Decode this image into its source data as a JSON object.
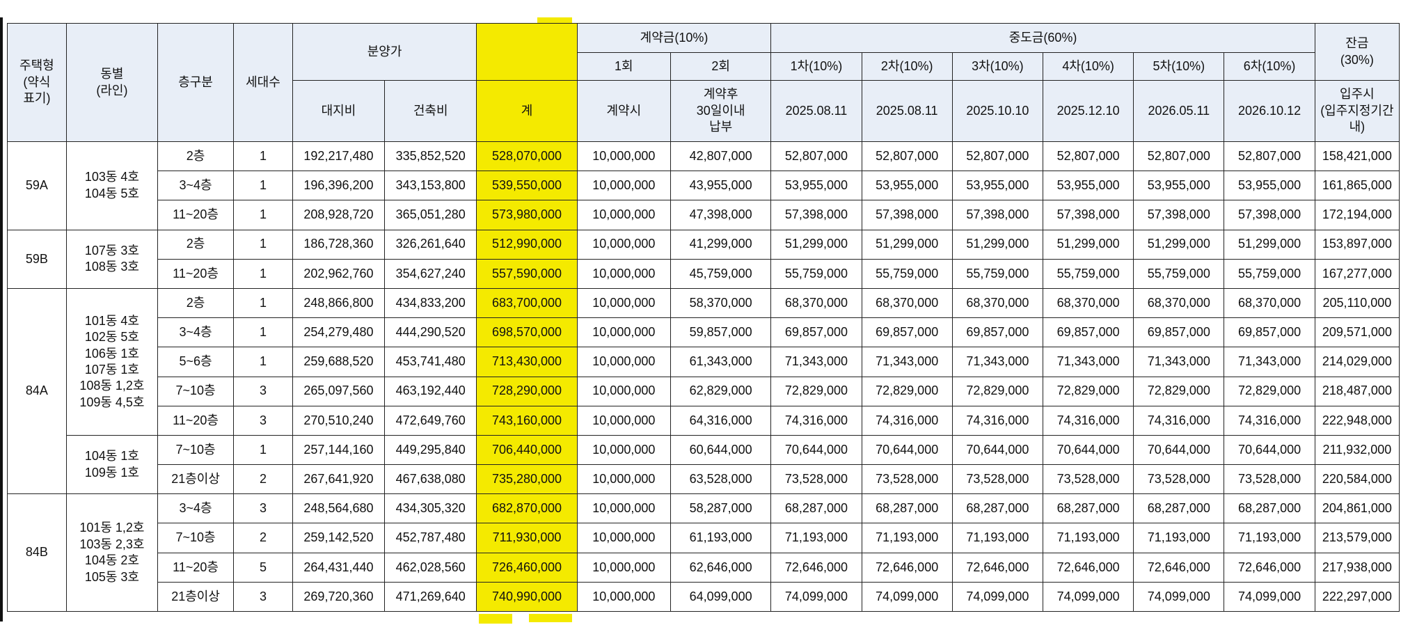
{
  "header": {
    "type": "주택형\n(약식\n표기)",
    "dong": "동별\n(라인)",
    "floor": "층구분",
    "units": "세대수",
    "price_group": "분양가",
    "land": "대지비",
    "building": "건축비",
    "total": "계",
    "deposit_group": "계약금(10%)",
    "deposit_1": "1회",
    "deposit_2": "2회",
    "deposit_1_when": "계약시",
    "deposit_2_when": "계약후\n30일이내\n납부",
    "middle_group": "중도금(60%)",
    "middle": [
      "1차(10%)",
      "2차(10%)",
      "3차(10%)",
      "4차(10%)",
      "5차(10%)",
      "6차(10%)"
    ],
    "middle_dates": [
      "2025.08.11",
      "2025.08.11",
      "2025.10.10",
      "2025.12.10",
      "2026.05.11",
      "2026.10.12"
    ],
    "balance": "잔금\n(30%)",
    "balance_when": "입주시\n(입주지정기간\n내)"
  },
  "types": [
    {
      "type": "59A",
      "groups": [
        {
          "dong": "103동 4호\n104동 5호",
          "rows": [
            {
              "floor": "2층",
              "units": "1",
              "land": "192,217,480",
              "building": "335,852,520",
              "total": "528,070,000",
              "d1": "10,000,000",
              "d2": "42,807,000",
              "mid": "52,807,000",
              "bal": "158,421,000"
            },
            {
              "floor": "3~4층",
              "units": "1",
              "land": "196,396,200",
              "building": "343,153,800",
              "total": "539,550,000",
              "d1": "10,000,000",
              "d2": "43,955,000",
              "mid": "53,955,000",
              "bal": "161,865,000"
            },
            {
              "floor": "11~20층",
              "units": "1",
              "land": "208,928,720",
              "building": "365,051,280",
              "total": "573,980,000",
              "d1": "10,000,000",
              "d2": "47,398,000",
              "mid": "57,398,000",
              "bal": "172,194,000"
            }
          ]
        }
      ]
    },
    {
      "type": "59B",
      "groups": [
        {
          "dong": "107동 3호\n108동 3호",
          "rows": [
            {
              "floor": "2층",
              "units": "1",
              "land": "186,728,360",
              "building": "326,261,640",
              "total": "512,990,000",
              "d1": "10,000,000",
              "d2": "41,299,000",
              "mid": "51,299,000",
              "bal": "153,897,000"
            },
            {
              "floor": "11~20층",
              "units": "1",
              "land": "202,962,760",
              "building": "354,627,240",
              "total": "557,590,000",
              "d1": "10,000,000",
              "d2": "45,759,000",
              "mid": "55,759,000",
              "bal": "167,277,000"
            }
          ]
        }
      ]
    },
    {
      "type": "84A",
      "groups": [
        {
          "dong": "101동 4호\n102동 5호\n106동 1호\n107동 1호\n108동 1,2호\n109동 4,5호",
          "rows": [
            {
              "floor": "2층",
              "units": "1",
              "land": "248,866,800",
              "building": "434,833,200",
              "total": "683,700,000",
              "d1": "10,000,000",
              "d2": "58,370,000",
              "mid": "68,370,000",
              "bal": "205,110,000"
            },
            {
              "floor": "3~4층",
              "units": "1",
              "land": "254,279,480",
              "building": "444,290,520",
              "total": "698,570,000",
              "d1": "10,000,000",
              "d2": "59,857,000",
              "mid": "69,857,000",
              "bal": "209,571,000"
            },
            {
              "floor": "5~6층",
              "units": "1",
              "land": "259,688,520",
              "building": "453,741,480",
              "total": "713,430,000",
              "d1": "10,000,000",
              "d2": "61,343,000",
              "mid": "71,343,000",
              "bal": "214,029,000"
            },
            {
              "floor": "7~10층",
              "units": "3",
              "land": "265,097,560",
              "building": "463,192,440",
              "total": "728,290,000",
              "d1": "10,000,000",
              "d2": "62,829,000",
              "mid": "72,829,000",
              "bal": "218,487,000"
            },
            {
              "floor": "11~20층",
              "units": "3",
              "land": "270,510,240",
              "building": "472,649,760",
              "total": "743,160,000",
              "d1": "10,000,000",
              "d2": "64,316,000",
              "mid": "74,316,000",
              "bal": "222,948,000"
            }
          ]
        },
        {
          "dong": "104동 1호\n109동 1호",
          "rows": [
            {
              "floor": "7~10층",
              "units": "1",
              "land": "257,144,160",
              "building": "449,295,840",
              "total": "706,440,000",
              "d1": "10,000,000",
              "d2": "60,644,000",
              "mid": "70,644,000",
              "bal": "211,932,000"
            },
            {
              "floor": "21층이상",
              "units": "2",
              "land": "267,641,920",
              "building": "467,638,080",
              "total": "735,280,000",
              "d1": "10,000,000",
              "d2": "63,528,000",
              "mid": "73,528,000",
              "bal": "220,584,000"
            }
          ]
        }
      ]
    },
    {
      "type": "84B",
      "groups": [
        {
          "dong": "101동 1,2호\n103동 2,3호\n104동 2호\n105동 3호",
          "rows": [
            {
              "floor": "3~4층",
              "units": "3",
              "land": "248,564,680",
              "building": "434,305,320",
              "total": "682,870,000",
              "d1": "10,000,000",
              "d2": "58,287,000",
              "mid": "68,287,000",
              "bal": "204,861,000"
            },
            {
              "floor": "7~10층",
              "units": "2",
              "land": "259,142,520",
              "building": "452,787,480",
              "total": "711,930,000",
              "d1": "10,000,000",
              "d2": "61,193,000",
              "mid": "71,193,000",
              "bal": "213,579,000"
            },
            {
              "floor": "11~20층",
              "units": "5",
              "land": "264,431,440",
              "building": "462,028,560",
              "total": "726,460,000",
              "d1": "10,000,000",
              "d2": "62,646,000",
              "mid": "72,646,000",
              "bal": "217,938,000"
            },
            {
              "floor": "21층이상",
              "units": "3",
              "land": "269,720,360",
              "building": "471,269,640",
              "total": "740,990,000",
              "d1": "10,000,000",
              "d2": "64,099,000",
              "mid": "74,099,000",
              "bal": "222,297,000"
            }
          ]
        }
      ]
    }
  ],
  "colors": {
    "header_bg": "#e8eef7",
    "highlight": "#f4ea00",
    "border": "#222222"
  }
}
